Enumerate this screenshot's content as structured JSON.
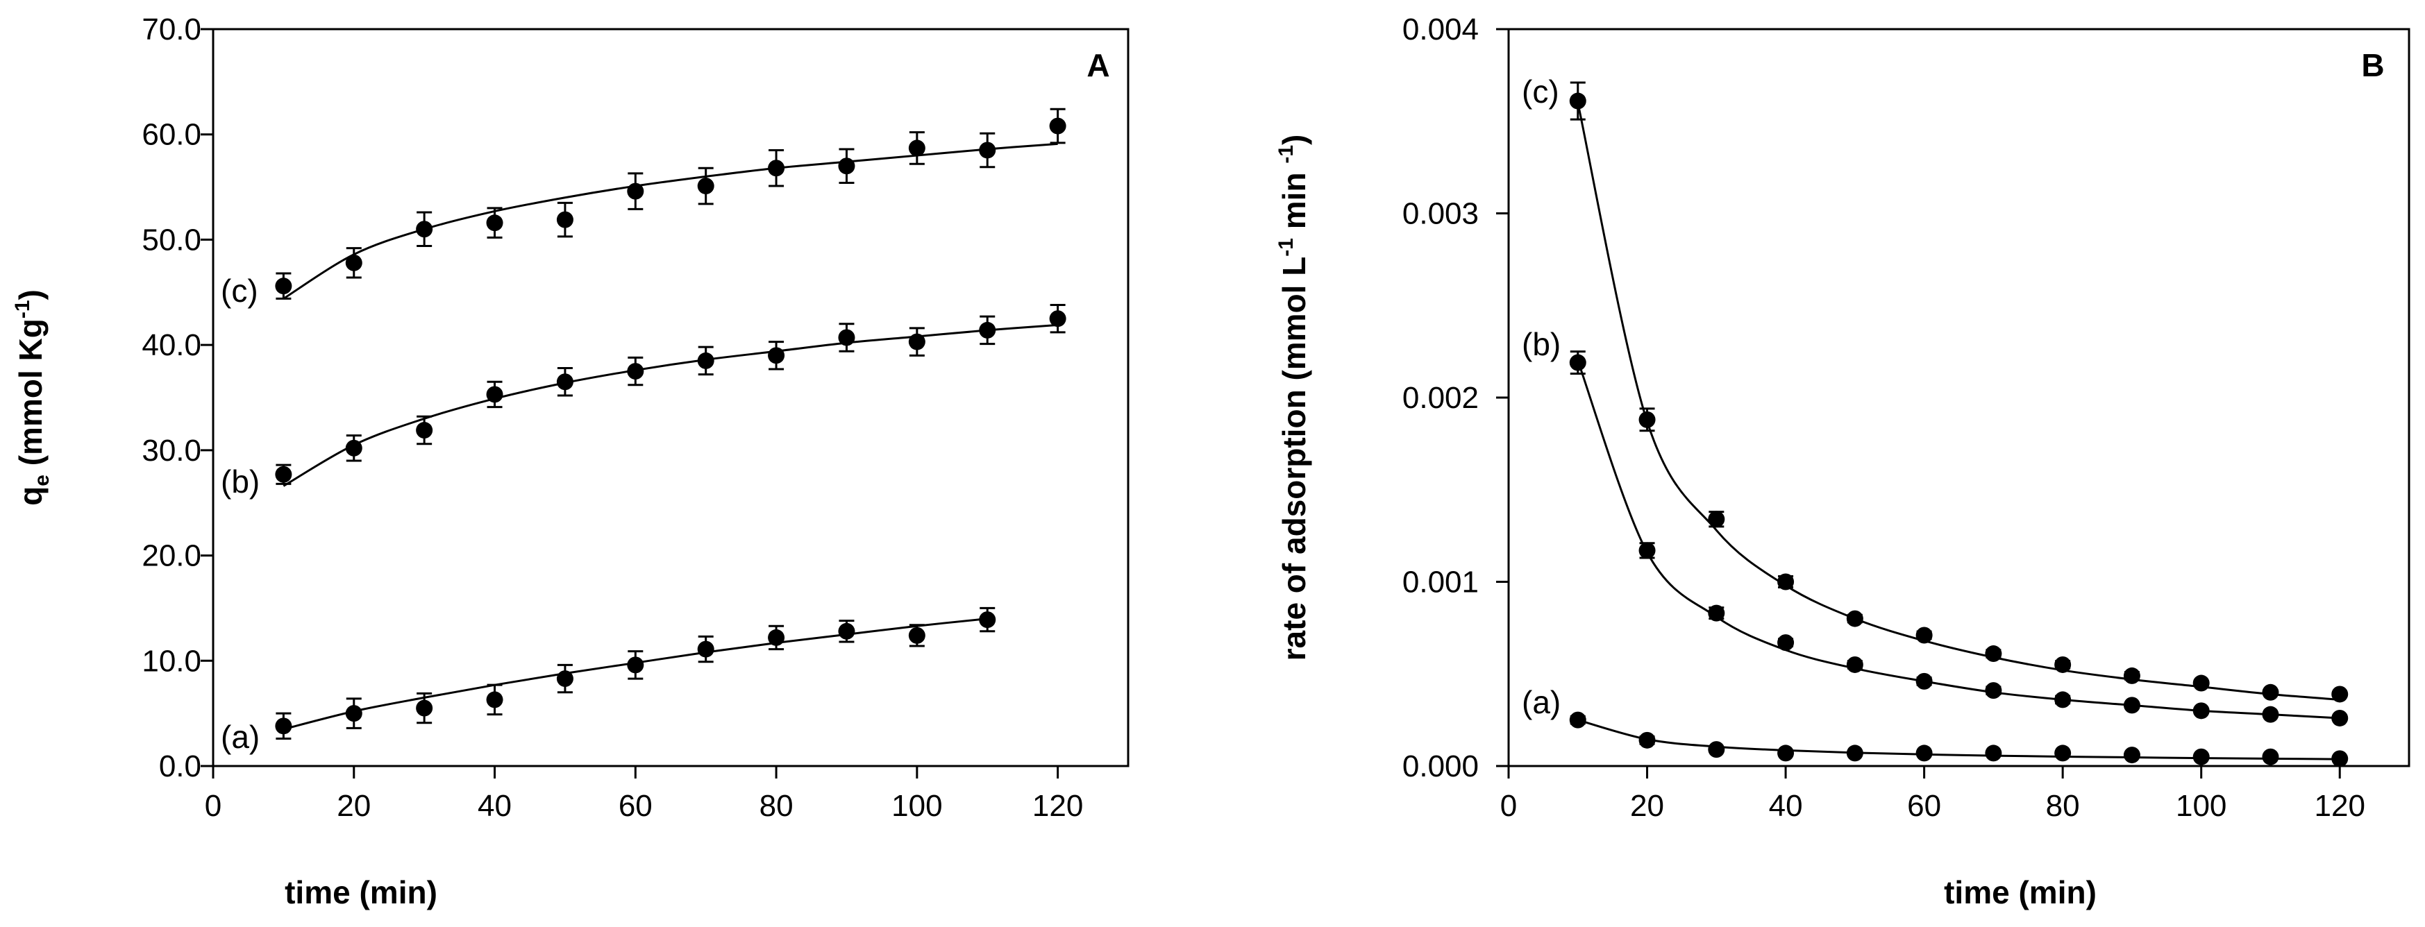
{
  "chart_data": [
    {
      "panel": "A",
      "type": "scatter",
      "title": "",
      "xlabel": "time (min)",
      "ylabel": {
        "main": "q",
        "sub": "e",
        "unit_prefix": " (mmol Kg",
        "unit_sup": "-1",
        "unit_suffix": ")"
      },
      "xlim": [
        0,
        130
      ],
      "ylim": [
        0,
        70
      ],
      "xticks": [
        0,
        20,
        40,
        60,
        80,
        100,
        120
      ],
      "xtick_labels": [
        "0",
        "20",
        "40",
        "60",
        "80",
        "100",
        "120"
      ],
      "yticks": [
        0,
        10,
        20,
        30,
        40,
        50,
        60,
        70
      ],
      "ytick_labels": [
        "0.0",
        "10.0",
        "20.0",
        "30.0",
        "40.0",
        "50.0",
        "60.0",
        "70.0"
      ],
      "grid": false,
      "series": [
        {
          "name": "(a)",
          "x": [
            10,
            20,
            30,
            40,
            50,
            60,
            70,
            80,
            90,
            100,
            110
          ],
          "y": [
            3.8,
            5.0,
            5.5,
            6.3,
            8.3,
            9.6,
            11.1,
            12.2,
            12.8,
            12.4,
            13.9
          ],
          "err": [
            1.2,
            1.4,
            1.4,
            1.4,
            1.3,
            1.3,
            1.2,
            1.1,
            1.0,
            1.0,
            1.1
          ],
          "fit_y": [
            3.5,
            5.2,
            6.5,
            7.7,
            8.8,
            9.8,
            10.8,
            11.7,
            12.5,
            13.3,
            14.0
          ]
        },
        {
          "name": "(b)",
          "x": [
            10,
            20,
            30,
            40,
            50,
            60,
            70,
            80,
            90,
            100,
            110,
            120
          ],
          "y": [
            27.7,
            30.2,
            31.9,
            35.3,
            36.5,
            37.5,
            38.5,
            39.0,
            40.7,
            40.3,
            41.4,
            42.5
          ],
          "err": [
            0.9,
            1.2,
            1.3,
            1.2,
            1.3,
            1.3,
            1.3,
            1.3,
            1.3,
            1.3,
            1.3,
            1.3
          ],
          "fit_y": [
            26.6,
            30.5,
            33.0,
            34.9,
            36.4,
            37.6,
            38.6,
            39.4,
            40.2,
            40.8,
            41.4,
            41.9
          ]
        },
        {
          "name": "(c)",
          "x": [
            10,
            20,
            30,
            40,
            50,
            60,
            70,
            80,
            90,
            100,
            110,
            120
          ],
          "y": [
            45.6,
            47.8,
            51.0,
            51.6,
            51.9,
            54.6,
            55.1,
            56.8,
            57.0,
            58.7,
            58.5,
            60.8
          ],
          "err": [
            1.2,
            1.4,
            1.6,
            1.4,
            1.6,
            1.7,
            1.7,
            1.7,
            1.6,
            1.5,
            1.6,
            1.6
          ],
          "fit_y": [
            44.4,
            48.6,
            51.0,
            52.7,
            54.0,
            55.1,
            56.0,
            56.8,
            57.4,
            58.0,
            58.6,
            59.1
          ]
        }
      ]
    },
    {
      "panel": "B",
      "type": "scatter",
      "title": "",
      "xlabel": "time (min)",
      "ylabel": {
        "main": "rate of adsorption (mmol L",
        "sup1": "-1",
        "mid": " min ",
        "sup2": "-1",
        "suffix": ")"
      },
      "xlim": [
        0,
        130
      ],
      "ylim": [
        0,
        0.004
      ],
      "xticks": [
        0,
        20,
        40,
        60,
        80,
        100,
        120
      ],
      "xtick_labels": [
        "0",
        "20",
        "40",
        "60",
        "80",
        "100",
        "120"
      ],
      "yticks": [
        0,
        0.001,
        0.002,
        0.003,
        0.004
      ],
      "ytick_labels": [
        "0.000",
        "0.001",
        "0.002",
        "0.003",
        "0.004"
      ],
      "grid": false,
      "series": [
        {
          "name": "(a)",
          "x": [
            10,
            20,
            30,
            40,
            50,
            60,
            70,
            80,
            90,
            100,
            110,
            120
          ],
          "y": [
            0.00025,
            0.00014,
            9e-05,
            7e-05,
            7e-05,
            7e-05,
            7e-05,
            7e-05,
            6e-05,
            5e-05,
            5e-05,
            4e-05
          ],
          "err": [
            2e-05,
            2e-05,
            1e-05,
            1e-05,
            1e-05,
            1e-05,
            1e-05,
            1e-05,
            1e-05,
            1e-05,
            1e-05,
            1e-05
          ],
          "fit_y": [
            0.00025,
            0.000145,
            0.000105,
            8.5e-05,
            7.2e-05,
            6.3e-05,
            5.6e-05,
            5.1e-05,
            4.7e-05,
            4.3e-05,
            4e-05,
            3.7e-05
          ]
        },
        {
          "name": "(b)",
          "x": [
            10,
            20,
            30,
            40,
            50,
            60,
            70,
            80,
            90,
            100,
            110,
            120
          ],
          "y": [
            0.00219,
            0.00117,
            0.00083,
            0.00067,
            0.00055,
            0.00046,
            0.00041,
            0.00036,
            0.00033,
            0.0003,
            0.00028,
            0.00026
          ],
          "err": [
            6e-05,
            4e-05,
            3e-05,
            2e-05,
            2e-05,
            2e-05,
            2e-05,
            2e-05,
            1e-05,
            1e-05,
            1e-05,
            1e-05
          ],
          "fit_y": [
            0.0022,
            0.00116,
            0.00081,
            0.00063,
            0.00053,
            0.00046,
            0.0004,
            0.00036,
            0.00033,
            0.0003,
            0.00028,
            0.00026
          ]
        },
        {
          "name": "(c)",
          "x": [
            10,
            20,
            30,
            40,
            50,
            60,
            70,
            80,
            90,
            100,
            110,
            120
          ],
          "y": [
            0.00361,
            0.00188,
            0.00134,
            0.001,
            0.0008,
            0.00071,
            0.00061,
            0.00055,
            0.00049,
            0.00045,
            0.0004,
            0.00039
          ],
          "err": [
            0.0001,
            6e-05,
            4e-05,
            3e-05,
            2e-05,
            2e-05,
            2e-05,
            2e-05,
            2e-05,
            1e-05,
            1e-05,
            1e-05
          ],
          "fit_y": [
            0.0036,
            0.00187,
            0.00128,
            0.00098,
            0.0008,
            0.00068,
            0.00059,
            0.00052,
            0.00047,
            0.00043,
            0.00039,
            0.00036
          ]
        }
      ]
    }
  ]
}
